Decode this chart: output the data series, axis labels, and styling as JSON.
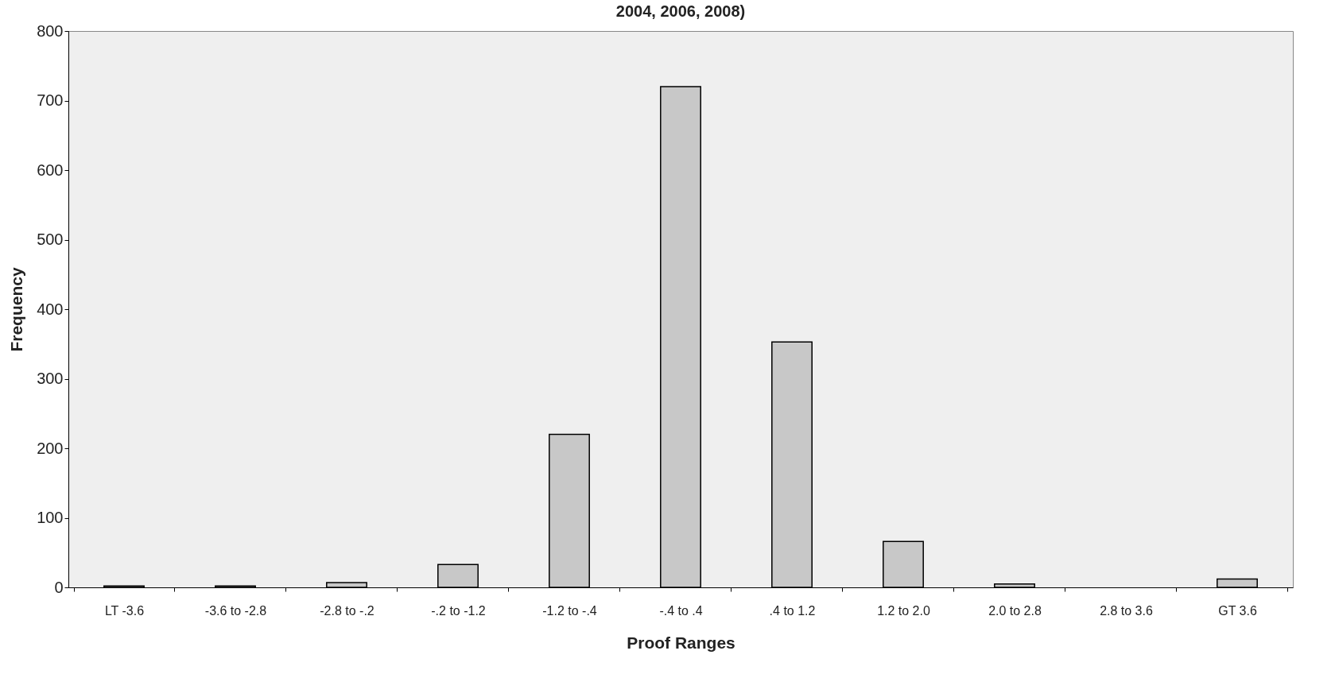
{
  "chart_data": {
    "type": "bar",
    "title": "2004, 2006, 2008)",
    "xlabel": "Proof Ranges",
    "ylabel": "Frequency",
    "categories": [
      "LT  -3.6",
      "-3.6 to    -2.8",
      "-2.8 to   -.2",
      "-.2 to  -1.2",
      "-1.2 to   -.4",
      "-.4 to .4",
      ".4 to 1.2",
      "1.2 to 2.0",
      "2.0 to 2.8",
      "2.8 to 3.6",
      "GT 3.6"
    ],
    "values": [
      2,
      2,
      7,
      33,
      220,
      720,
      353,
      66,
      5,
      0,
      12
    ],
    "color": "#c8c8c8",
    "ylim": [
      0,
      800
    ],
    "yticks": [
      0,
      100,
      200,
      300,
      400,
      500,
      600,
      700,
      800
    ],
    "grid": false
  }
}
